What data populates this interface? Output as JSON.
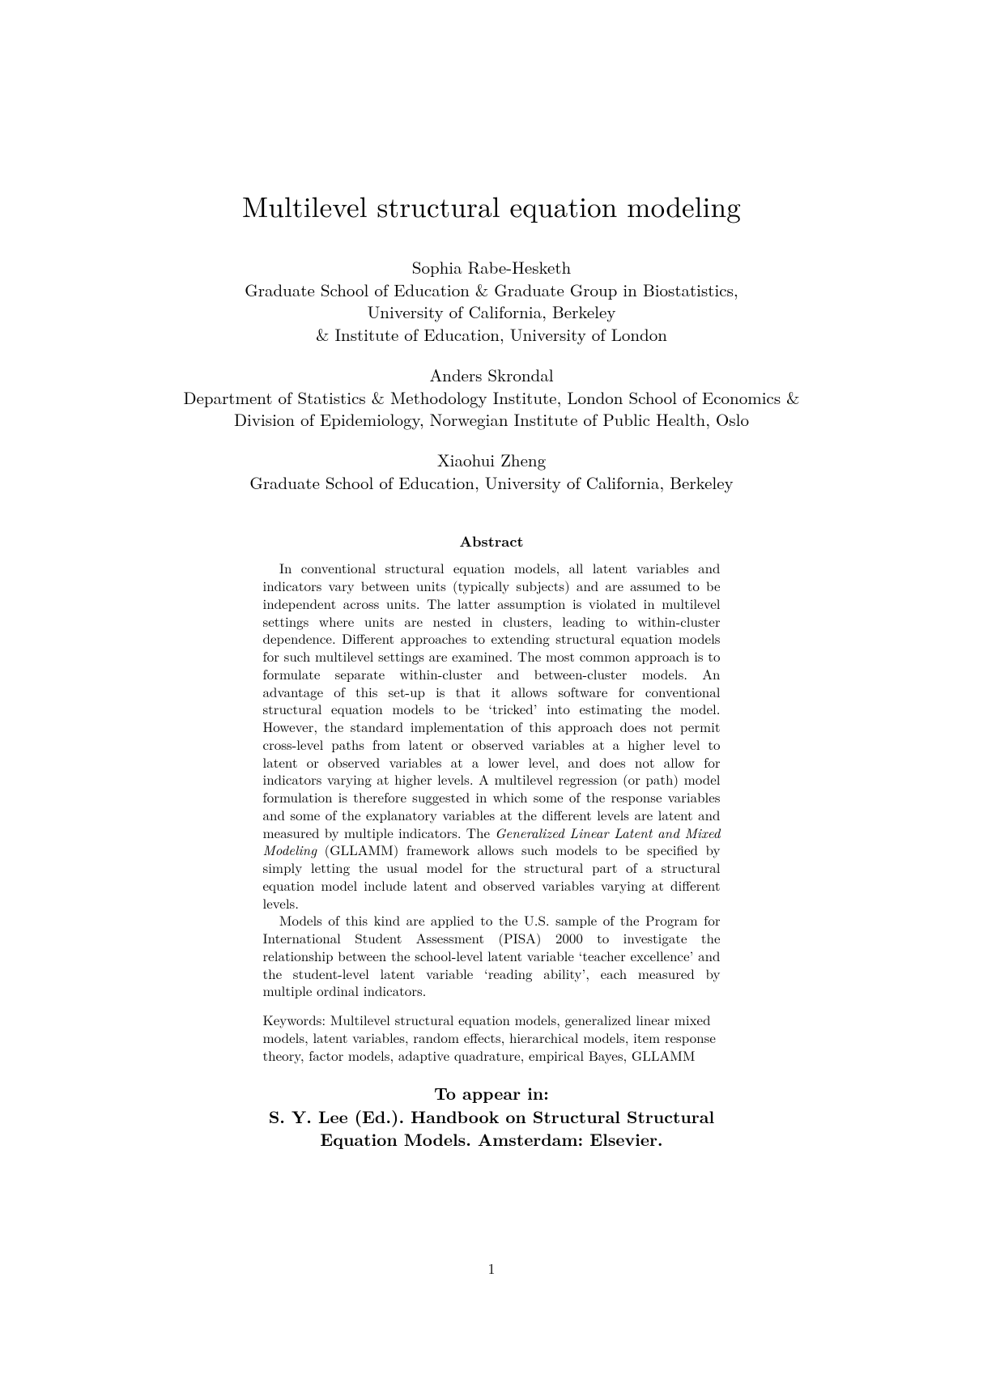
{
  "title": "Multilevel structural equation modeling",
  "authors": [
    {
      "name": "Sophia Rabe-Hesketh",
      "affil_lines": [
        "Graduate School of Education & Graduate Group in Biostatistics,",
        "University of California, Berkeley",
        "& Institute of Education, University of London"
      ]
    },
    {
      "name": "Anders Skrondal",
      "affil_lines": [
        "Department of Statistics & Methodology Institute, London School of Economics &",
        "Division of Epidemiology, Norwegian Institute of Public Health, Oslo"
      ]
    },
    {
      "name": "Xiaohui Zheng",
      "affil_lines": [
        "Graduate School of Education, University of California, Berkeley"
      ]
    }
  ],
  "abstract_heading": "Abstract",
  "abstract_p1_a": "In conventional structural equation models, all latent variables and indicators vary between units (typically subjects) and are assumed to be independent across units. The latter assumption is violated in multilevel settings where units are nested in clusters, leading to within-cluster dependence. Different approaches to extending structural equation models for such multilevel settings are examined. The most common approach is to formulate separate within-cluster and between-cluster models. An advantage of this set-up is that it allows software for conventional structural equation models to be ‘tricked’ into estimating the model. However, the standard implementation of this approach does not permit cross-level paths from latent or observed variables at a higher level to latent or observed variables at a lower level, and does not allow for indicators varying at higher levels. A multilevel regression (or path) model formulation is therefore suggested in which some of the response variables and some of the explanatory variables at the different levels are latent and measured by multiple indicators. The ",
  "abstract_p1_italic": "Generalized Linear Latent and Mixed Modeling",
  "abstract_p1_b": " (GLLAMM) framework allows such models to be specified by simply letting the usual model for the structural part of a structural equation model include latent and observed variables varying at different levels.",
  "abstract_p2": "Models of this kind are applied to the U.S. sample of the Program for International Student Assessment (PISA) 2000 to investigate the relationship between the school-level latent variable ‘teacher excellence’ and the student-level latent variable ‘reading ability’, each measured by multiple ordinal indicators.",
  "keywords": "Keywords: Multilevel structural equation models, generalized linear mixed models, latent variables, random effects, hierarchical models, item response theory, factor models, adaptive quadrature, empirical Bayes, GLLAMM",
  "appear": {
    "line1": "To appear in:",
    "line2": "S. Y. Lee (Ed.). Handbook on Structural Structural",
    "line3": "Equation Models. Amsterdam: Elsevier."
  },
  "page_number": "1"
}
